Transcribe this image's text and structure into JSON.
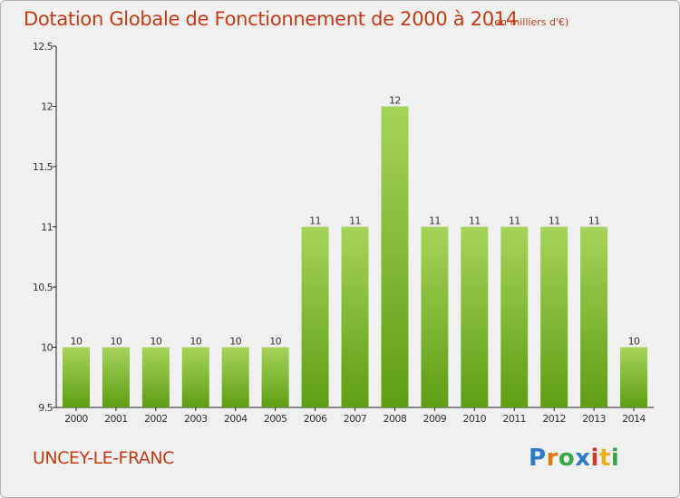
{
  "title": "Dotation Globale de Fonctionnement de 2000 à 2014",
  "subtitle": "(en milliers d'€)",
  "commune": "UNCEY-LE-FRANC",
  "logo": {
    "letters": [
      "P",
      "r",
      "o",
      "x",
      "i",
      "t",
      "i"
    ]
  },
  "colors": {
    "bar_light": "#a6d35a",
    "bar_dark": "#5f9e12",
    "title": "#bf3b16"
  },
  "chart_data": {
    "type": "bar",
    "title": "Dotation Globale de Fonctionnement de 2000 à 2014",
    "subtitle": "(en milliers d'€)",
    "xlabel": "",
    "ylabel": "",
    "categories": [
      "2000",
      "2001",
      "2002",
      "2003",
      "2004",
      "2005",
      "2006",
      "2007",
      "2008",
      "2009",
      "2010",
      "2011",
      "2012",
      "2013",
      "2014"
    ],
    "values": [
      10,
      10,
      10,
      10,
      10,
      10,
      11,
      11,
      12,
      11,
      11,
      11,
      11,
      11,
      10
    ],
    "labels": [
      "10",
      "10",
      "10",
      "10",
      "10",
      "10",
      "11",
      "11",
      "12",
      "11",
      "11",
      "11",
      "11",
      "11",
      "10"
    ],
    "ylim": [
      9.5,
      12.5
    ],
    "yticks": [
      9.5,
      10,
      10.5,
      11,
      11.5,
      12,
      12.5
    ],
    "ytick_labels": [
      "9.5",
      "10",
      "10.5",
      "11",
      "11.5",
      "12",
      "12.5"
    ],
    "grid": false,
    "legend": "none"
  }
}
